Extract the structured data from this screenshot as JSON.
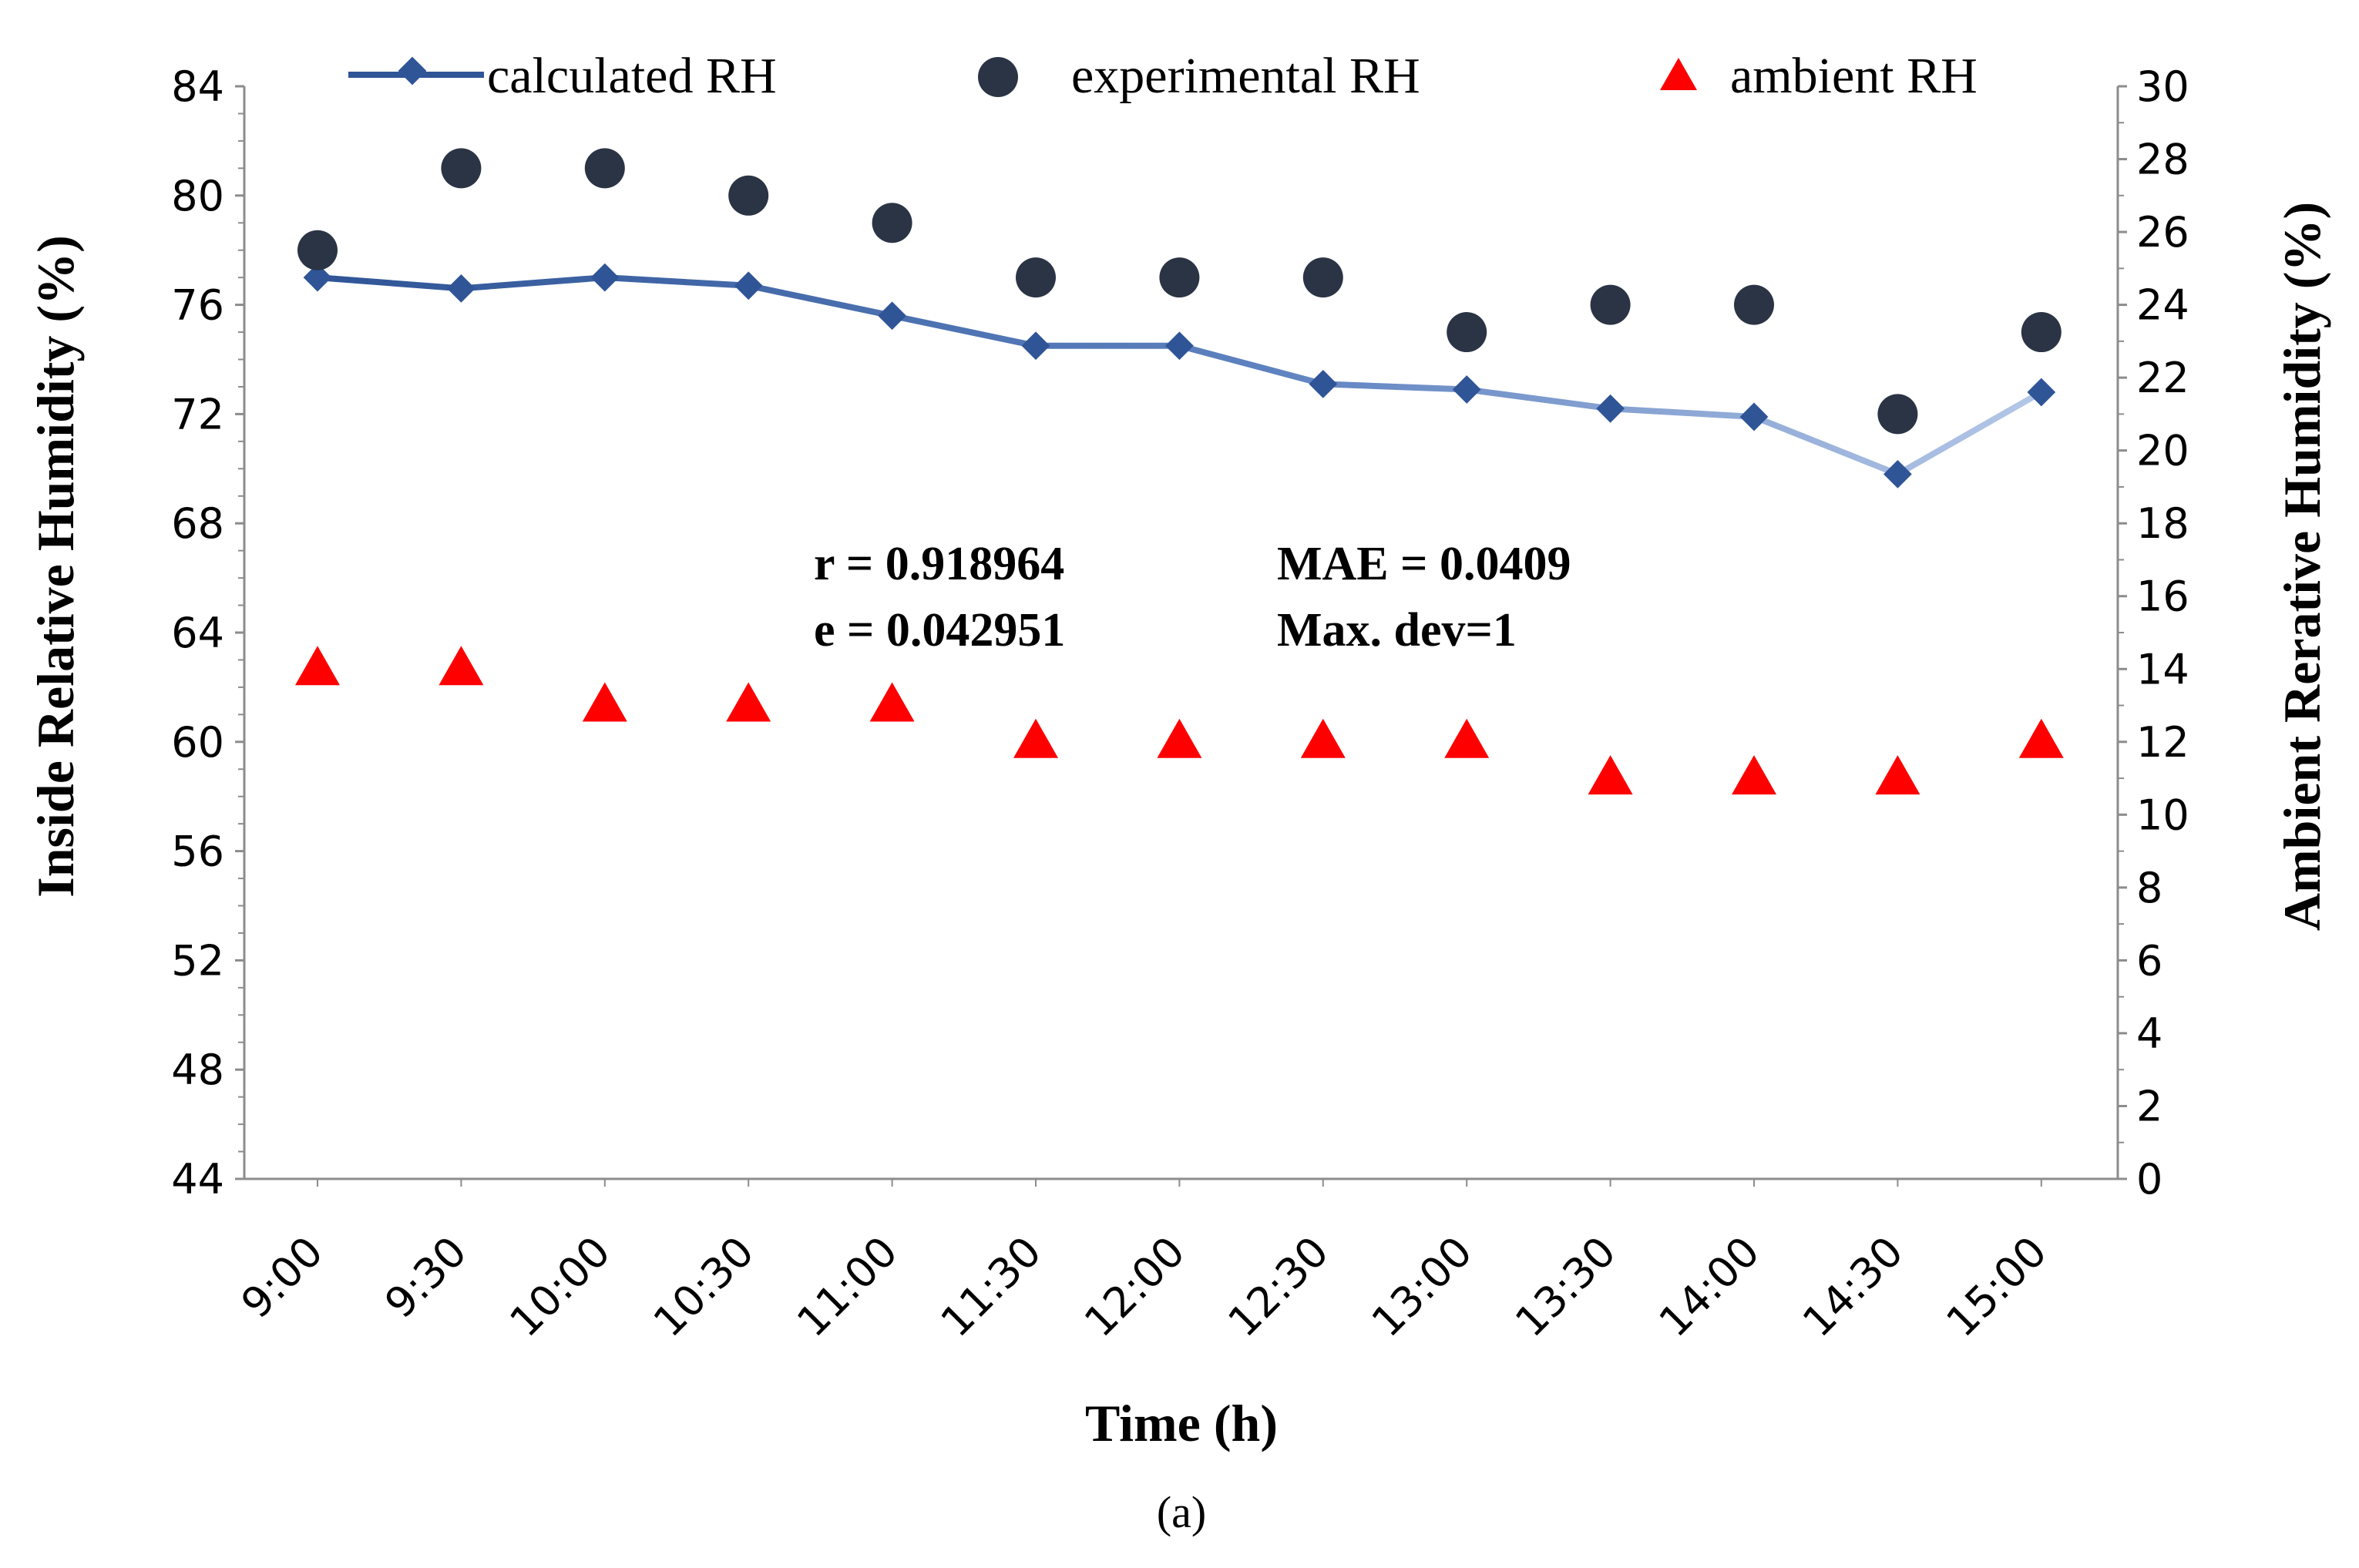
{
  "chart_data": {
    "type": "line",
    "categories": [
      "9:00",
      "9:30",
      "10:00",
      "10:30",
      "11:00",
      "11:30",
      "12:00",
      "12:30",
      "13:00",
      "13:30",
      "14:00",
      "14:30",
      "15:00"
    ],
    "series": [
      {
        "name": "calculated RH",
        "axis": "left",
        "marker": "diamond",
        "line": true,
        "color": "#2f5597",
        "values": [
          77.0,
          76.6,
          77.0,
          76.7,
          75.6,
          74.5,
          74.5,
          73.1,
          72.9,
          72.2,
          71.9,
          69.8,
          72.8
        ]
      },
      {
        "name": "experimental RH",
        "axis": "left",
        "marker": "circle",
        "line": false,
        "color": "#2b3444",
        "values": [
          78,
          81,
          81,
          80,
          79,
          77,
          77,
          77,
          75,
          76,
          76,
          72,
          75
        ]
      },
      {
        "name": "ambient RH",
        "axis": "right",
        "marker": "triangle",
        "line": false,
        "color": "#ff0000",
        "values": [
          14,
          14,
          13,
          13,
          13,
          12,
          12,
          12,
          12,
          11,
          11,
          11,
          12
        ]
      }
    ],
    "y_left": {
      "label": "Inside Relative Humidity (%)",
      "min": 44,
      "max": 84,
      "step": 4,
      "ticks": [
        "44",
        "48",
        "52",
        "56",
        "60",
        "64",
        "68",
        "72",
        "76",
        "80",
        "84"
      ]
    },
    "y_right": {
      "label": "Ambient Rerative Humidity (%)",
      "min": 0,
      "max": 30,
      "step": 2,
      "ticks": [
        "0",
        "2",
        "4",
        "6",
        "8",
        "10",
        "12",
        "14",
        "16",
        "18",
        "20",
        "22",
        "24",
        "26",
        "28",
        "30"
      ]
    },
    "xlabel": "Time (h)",
    "legend_position": "top",
    "annotations": {
      "r": "r = 0.918964",
      "e": "e = 0.042951",
      "mae": "MAE = 0.0409",
      "maxdev": "Max. dev=1"
    },
    "caption": "(a)"
  }
}
